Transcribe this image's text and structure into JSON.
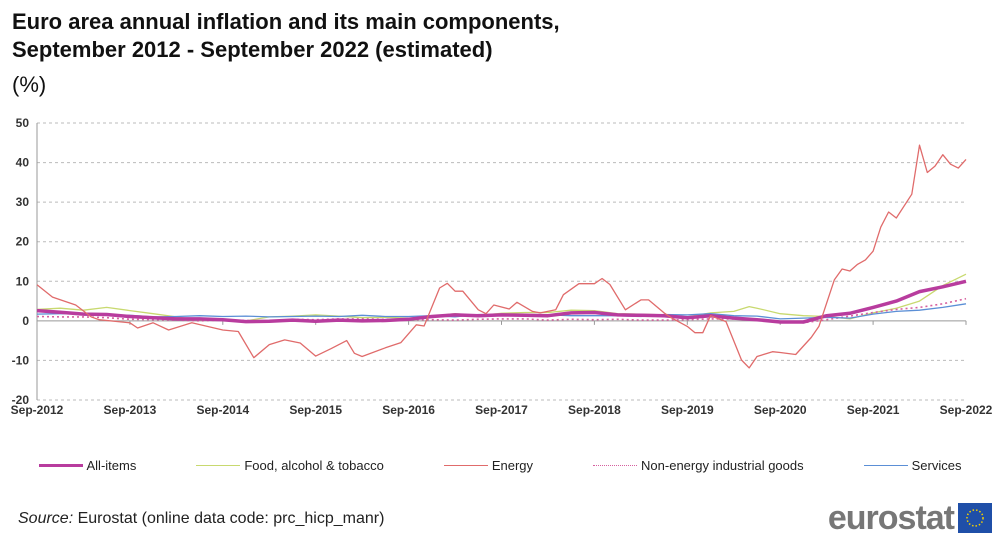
{
  "title_line1": "Euro area annual inflation and its main components,",
  "title_line2": "September 2012 - September 2022 (estimated)",
  "unit": "(%)",
  "source_label": "Source:",
  "source_text": " Eurostat (online data code: prc_hicp_manr)",
  "logo": "eurostat",
  "chart_data": {
    "type": "line",
    "ylim": [
      -20,
      50
    ],
    "yticks": [
      50,
      40,
      30,
      20,
      10,
      0,
      -10,
      -20
    ],
    "xlim": [
      "2012-09",
      "2022-09"
    ],
    "xtick_labels": [
      "Sep-2012",
      "Sep-2013",
      "Sep-2014",
      "Sep-2015",
      "Sep-2016",
      "Sep-2017",
      "Sep-2018",
      "Sep-2019",
      "Sep-2020",
      "Sep-2021",
      "Sep-2022"
    ],
    "grid": "horizontal dashed",
    "legend": "bottom",
    "series": [
      {
        "name": "All-items",
        "color": "#b83c9e",
        "style": "thick",
        "points": [
          [
            "2012-09",
            2.6
          ],
          [
            "2012-12",
            2.2
          ],
          [
            "2013-03",
            1.7
          ],
          [
            "2013-06",
            1.6
          ],
          [
            "2013-09",
            1.1
          ],
          [
            "2013-12",
            0.8
          ],
          [
            "2014-03",
            0.5
          ],
          [
            "2014-06",
            0.5
          ],
          [
            "2014-09",
            0.3
          ],
          [
            "2014-12",
            -0.2
          ],
          [
            "2015-03",
            -0.1
          ],
          [
            "2015-06",
            0.2
          ],
          [
            "2015-09",
            -0.1
          ],
          [
            "2015-12",
            0.2
          ],
          [
            "2016-03",
            0
          ],
          [
            "2016-06",
            0.1
          ],
          [
            "2016-09",
            0.4
          ],
          [
            "2016-12",
            1.1
          ],
          [
            "2017-03",
            1.5
          ],
          [
            "2017-06",
            1.3
          ],
          [
            "2017-09",
            1.5
          ],
          [
            "2017-12",
            1.4
          ],
          [
            "2018-03",
            1.3
          ],
          [
            "2018-06",
            2.0
          ],
          [
            "2018-09",
            2.1
          ],
          [
            "2018-12",
            1.5
          ],
          [
            "2019-03",
            1.4
          ],
          [
            "2019-06",
            1.3
          ],
          [
            "2019-09",
            0.8
          ],
          [
            "2019-12",
            1.3
          ],
          [
            "2020-03",
            0.7
          ],
          [
            "2020-06",
            0.3
          ],
          [
            "2020-09",
            -0.3
          ],
          [
            "2020-12",
            -0.3
          ],
          [
            "2021-03",
            1.3
          ],
          [
            "2021-06",
            1.9
          ],
          [
            "2021-09",
            3.4
          ],
          [
            "2021-12",
            5.0
          ],
          [
            "2022-03",
            7.4
          ],
          [
            "2022-06",
            8.6
          ],
          [
            "2022-09",
            10.0
          ]
        ]
      },
      {
        "name": "Food, alcohol & tobacco",
        "color": "#c8d96f",
        "style": "solid",
        "points": [
          [
            "2012-09",
            2.9
          ],
          [
            "2012-12",
            3.2
          ],
          [
            "2013-03",
            2.7
          ],
          [
            "2013-06",
            3.4
          ],
          [
            "2013-09",
            2.6
          ],
          [
            "2013-12",
            1.8
          ],
          [
            "2014-03",
            1.0
          ],
          [
            "2014-06",
            0.2
          ],
          [
            "2014-09",
            0.3
          ],
          [
            "2014-12",
            0.0
          ],
          [
            "2015-03",
            1.0
          ],
          [
            "2015-06",
            1.2
          ],
          [
            "2015-09",
            1.5
          ],
          [
            "2015-12",
            1.2
          ],
          [
            "2016-03",
            0.8
          ],
          [
            "2016-06",
            0.9
          ],
          [
            "2016-09",
            0.7
          ],
          [
            "2016-12",
            1.2
          ],
          [
            "2017-03",
            1.8
          ],
          [
            "2017-06",
            1.3
          ],
          [
            "2017-09",
            1.9
          ],
          [
            "2017-12",
            2.1
          ],
          [
            "2018-03",
            2.1
          ],
          [
            "2018-06",
            2.7
          ],
          [
            "2018-09",
            2.6
          ],
          [
            "2018-12",
            1.8
          ],
          [
            "2019-03",
            1.7
          ],
          [
            "2019-06",
            1.5
          ],
          [
            "2019-09",
            1.0
          ],
          [
            "2019-12",
            2.0
          ],
          [
            "2020-03",
            2.4
          ],
          [
            "2020-05",
            3.6
          ],
          [
            "2020-06",
            3.2
          ],
          [
            "2020-09",
            1.8
          ],
          [
            "2020-12",
            1.3
          ],
          [
            "2021-03",
            1.1
          ],
          [
            "2021-06",
            0.5
          ],
          [
            "2021-09",
            2.0
          ],
          [
            "2021-12",
            3.2
          ],
          [
            "2022-03",
            5.0
          ],
          [
            "2022-06",
            8.9
          ],
          [
            "2022-09",
            11.8
          ]
        ]
      },
      {
        "name": "Energy",
        "color": "#e06b6b",
        "style": "solid",
        "points": [
          [
            "2012-09",
            9.1
          ],
          [
            "2012-11",
            6
          ],
          [
            "2013-02",
            4
          ],
          [
            "2013-04",
            1
          ],
          [
            "2013-05",
            0.3
          ],
          [
            "2013-09",
            -0.5
          ],
          [
            "2013-10",
            -1.8
          ],
          [
            "2013-12",
            -0.5
          ],
          [
            "2014-02",
            -2.3
          ],
          [
            "2014-05",
            -0.5
          ],
          [
            "2014-09",
            -2.3
          ],
          [
            "2014-11",
            -2.7
          ],
          [
            "2015-01",
            -9.3
          ],
          [
            "2015-03",
            -6
          ],
          [
            "2015-05",
            -4.8
          ],
          [
            "2015-07",
            -5.6
          ],
          [
            "2015-09",
            -8.9
          ],
          [
            "2015-11",
            -7
          ],
          [
            "2016-01",
            -5
          ],
          [
            "2016-02",
            -8.2
          ],
          [
            "2016-03",
            -9
          ],
          [
            "2016-06",
            -6.8
          ],
          [
            "2016-08",
            -5.5
          ],
          [
            "2016-10",
            -1
          ],
          [
            "2016-11",
            -1.3
          ],
          [
            "2017-01",
            8.3
          ],
          [
            "2017-02",
            9.5
          ],
          [
            "2017-03",
            7.5
          ],
          [
            "2017-04",
            7.5
          ],
          [
            "2017-06",
            2.8
          ],
          [
            "2017-07",
            1.8
          ],
          [
            "2017-08",
            4
          ],
          [
            "2017-10",
            3
          ],
          [
            "2017-11",
            4.7
          ],
          [
            "2018-01",
            2.4
          ],
          [
            "2018-02",
            2
          ],
          [
            "2018-04",
            2.8
          ],
          [
            "2018-05",
            6.6
          ],
          [
            "2018-07",
            9.4
          ],
          [
            "2018-09",
            9.4
          ],
          [
            "2018-10",
            10.7
          ],
          [
            "2018-11",
            9.2
          ],
          [
            "2019-01",
            2.8
          ],
          [
            "2019-03",
            5.3
          ],
          [
            "2019-04",
            5.3
          ],
          [
            "2019-06",
            2
          ],
          [
            "2019-07",
            0.7
          ],
          [
            "2019-09",
            -1.4
          ],
          [
            "2019-10",
            -3
          ],
          [
            "2019-11",
            -3
          ],
          [
            "2019-12",
            1.3
          ],
          [
            "2020-02",
            -0.2
          ],
          [
            "2020-04",
            -9.9
          ],
          [
            "2020-05",
            -11.9
          ],
          [
            "2020-06",
            -9
          ],
          [
            "2020-08",
            -7.8
          ],
          [
            "2020-09",
            -8
          ],
          [
            "2020-11",
            -8.5
          ],
          [
            "2021-01",
            -4.2
          ],
          [
            "2021-02",
            -1.4
          ],
          [
            "2021-04",
            10.4
          ],
          [
            "2021-05",
            13.1
          ],
          [
            "2021-06",
            12.6
          ],
          [
            "2021-07",
            14.3
          ],
          [
            "2021-08",
            15.4
          ],
          [
            "2021-09",
            17.6
          ],
          [
            "2021-10",
            23.7
          ],
          [
            "2021-11",
            27.5
          ],
          [
            "2021-12",
            26
          ],
          [
            "2022-02",
            32
          ],
          [
            "2022-03",
            44.4
          ],
          [
            "2022-04",
            37.5
          ],
          [
            "2022-05",
            39.1
          ],
          [
            "2022-06",
            42
          ],
          [
            "2022-07",
            39.6
          ],
          [
            "2022-08",
            38.6
          ],
          [
            "2022-09",
            40.8
          ]
        ]
      },
      {
        "name": "Non-energy industrial goods",
        "color": "#d6609f",
        "style": "dotted",
        "points": [
          [
            "2012-09",
            1.1
          ],
          [
            "2012-12",
            1.0
          ],
          [
            "2013-03",
            1.0
          ],
          [
            "2013-06",
            0.8
          ],
          [
            "2013-09",
            0.4
          ],
          [
            "2013-12",
            0.3
          ],
          [
            "2014-03",
            0.2
          ],
          [
            "2014-06",
            0
          ],
          [
            "2014-09",
            0.2
          ],
          [
            "2014-12",
            0.1
          ],
          [
            "2015-03",
            -0.1
          ],
          [
            "2015-06",
            0.4
          ],
          [
            "2015-09",
            0.3
          ],
          [
            "2015-12",
            0.5
          ],
          [
            "2016-03",
            0.5
          ],
          [
            "2016-06",
            0.4
          ],
          [
            "2016-09",
            0.3
          ],
          [
            "2016-12",
            0.3
          ],
          [
            "2017-03",
            0.2
          ],
          [
            "2017-06",
            0.4
          ],
          [
            "2017-09",
            0.5
          ],
          [
            "2017-12",
            0.5
          ],
          [
            "2018-03",
            0.2
          ],
          [
            "2018-06",
            0.4
          ],
          [
            "2018-09",
            0.3
          ],
          [
            "2018-12",
            0.4
          ],
          [
            "2019-03",
            0.2
          ],
          [
            "2019-06",
            0.2
          ],
          [
            "2019-09",
            0.3
          ],
          [
            "2019-12",
            0.5
          ],
          [
            "2020-03",
            0.5
          ],
          [
            "2020-06",
            0.2
          ],
          [
            "2020-09",
            -0.3
          ],
          [
            "2020-12",
            -0.5
          ],
          [
            "2021-03",
            0.3
          ],
          [
            "2021-06",
            1.2
          ],
          [
            "2021-09",
            2.1
          ],
          [
            "2021-12",
            2.9
          ],
          [
            "2022-03",
            3.4
          ],
          [
            "2022-06",
            4.3
          ],
          [
            "2022-09",
            5.6
          ]
        ]
      },
      {
        "name": "Services",
        "color": "#5b8fd6",
        "style": "solid",
        "points": [
          [
            "2012-09",
            1.7
          ],
          [
            "2012-12",
            1.8
          ],
          [
            "2013-03",
            1.8
          ],
          [
            "2013-06",
            1.4
          ],
          [
            "2013-09",
            1.4
          ],
          [
            "2013-12",
            1.0
          ],
          [
            "2014-03",
            1.1
          ],
          [
            "2014-06",
            1.3
          ],
          [
            "2014-09",
            1.1
          ],
          [
            "2014-12",
            1.2
          ],
          [
            "2015-03",
            1.0
          ],
          [
            "2015-06",
            1.1
          ],
          [
            "2015-09",
            1.2
          ],
          [
            "2015-12",
            1.1
          ],
          [
            "2016-03",
            1.4
          ],
          [
            "2016-06",
            1.1
          ],
          [
            "2016-09",
            1.1
          ],
          [
            "2016-12",
            1.3
          ],
          [
            "2017-03",
            1.0
          ],
          [
            "2017-06",
            1.6
          ],
          [
            "2017-09",
            1.5
          ],
          [
            "2017-12",
            1.2
          ],
          [
            "2018-03",
            1.5
          ],
          [
            "2018-06",
            1.3
          ],
          [
            "2018-09",
            1.3
          ],
          [
            "2018-12",
            1.3
          ],
          [
            "2019-03",
            1.1
          ],
          [
            "2019-06",
            1.6
          ],
          [
            "2019-09",
            1.5
          ],
          [
            "2019-12",
            1.8
          ],
          [
            "2020-03",
            1.3
          ],
          [
            "2020-06",
            1.2
          ],
          [
            "2020-09",
            0.5
          ],
          [
            "2020-12",
            0.7
          ],
          [
            "2021-03",
            0.9
          ],
          [
            "2021-06",
            0.7
          ],
          [
            "2021-09",
            1.7
          ],
          [
            "2021-12",
            2.4
          ],
          [
            "2022-03",
            2.7
          ],
          [
            "2022-06",
            3.4
          ],
          [
            "2022-09",
            4.3
          ]
        ]
      }
    ]
  }
}
